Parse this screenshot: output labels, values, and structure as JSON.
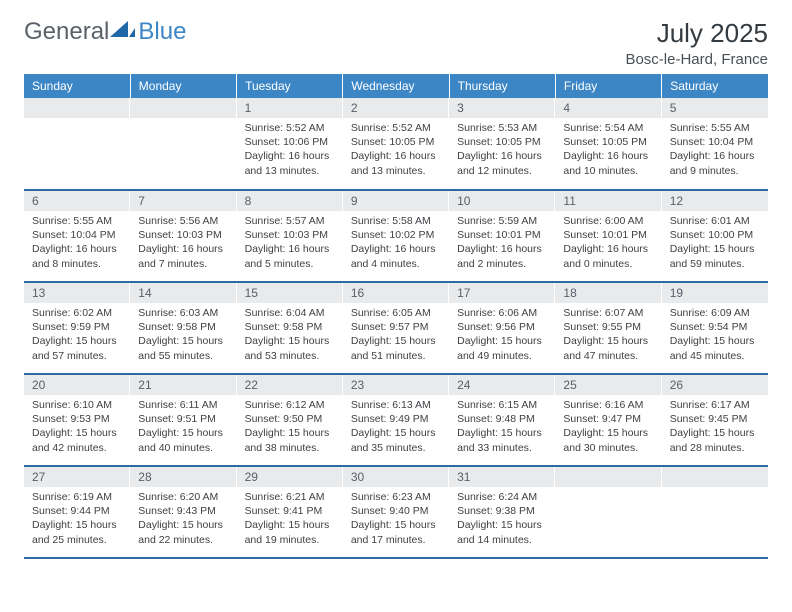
{
  "brand": {
    "part1": "General",
    "part2": "Blue"
  },
  "title": "July 2025",
  "location": "Bosc-le-Hard, France",
  "colors": {
    "header_bg": "#3d86c6",
    "header_text": "#ffffff",
    "daynum_bg": "#e9eaec",
    "row_divider": "#2f6aa3",
    "body_text": "#3f4145",
    "brand_gray": "#5a6168",
    "brand_blue": "#3d86c6"
  },
  "weekdays": [
    "Sunday",
    "Monday",
    "Tuesday",
    "Wednesday",
    "Thursday",
    "Friday",
    "Saturday"
  ],
  "layout": {
    "first_weekday_index": 2,
    "days_in_month": 31
  },
  "days": {
    "1": {
      "sunrise": "5:52 AM",
      "sunset": "10:06 PM",
      "daylight": "16 hours and 13 minutes."
    },
    "2": {
      "sunrise": "5:52 AM",
      "sunset": "10:05 PM",
      "daylight": "16 hours and 13 minutes."
    },
    "3": {
      "sunrise": "5:53 AM",
      "sunset": "10:05 PM",
      "daylight": "16 hours and 12 minutes."
    },
    "4": {
      "sunrise": "5:54 AM",
      "sunset": "10:05 PM",
      "daylight": "16 hours and 10 minutes."
    },
    "5": {
      "sunrise": "5:55 AM",
      "sunset": "10:04 PM",
      "daylight": "16 hours and 9 minutes."
    },
    "6": {
      "sunrise": "5:55 AM",
      "sunset": "10:04 PM",
      "daylight": "16 hours and 8 minutes."
    },
    "7": {
      "sunrise": "5:56 AM",
      "sunset": "10:03 PM",
      "daylight": "16 hours and 7 minutes."
    },
    "8": {
      "sunrise": "5:57 AM",
      "sunset": "10:03 PM",
      "daylight": "16 hours and 5 minutes."
    },
    "9": {
      "sunrise": "5:58 AM",
      "sunset": "10:02 PM",
      "daylight": "16 hours and 4 minutes."
    },
    "10": {
      "sunrise": "5:59 AM",
      "sunset": "10:01 PM",
      "daylight": "16 hours and 2 minutes."
    },
    "11": {
      "sunrise": "6:00 AM",
      "sunset": "10:01 PM",
      "daylight": "16 hours and 0 minutes."
    },
    "12": {
      "sunrise": "6:01 AM",
      "sunset": "10:00 PM",
      "daylight": "15 hours and 59 minutes."
    },
    "13": {
      "sunrise": "6:02 AM",
      "sunset": "9:59 PM",
      "daylight": "15 hours and 57 minutes."
    },
    "14": {
      "sunrise": "6:03 AM",
      "sunset": "9:58 PM",
      "daylight": "15 hours and 55 minutes."
    },
    "15": {
      "sunrise": "6:04 AM",
      "sunset": "9:58 PM",
      "daylight": "15 hours and 53 minutes."
    },
    "16": {
      "sunrise": "6:05 AM",
      "sunset": "9:57 PM",
      "daylight": "15 hours and 51 minutes."
    },
    "17": {
      "sunrise": "6:06 AM",
      "sunset": "9:56 PM",
      "daylight": "15 hours and 49 minutes."
    },
    "18": {
      "sunrise": "6:07 AM",
      "sunset": "9:55 PM",
      "daylight": "15 hours and 47 minutes."
    },
    "19": {
      "sunrise": "6:09 AM",
      "sunset": "9:54 PM",
      "daylight": "15 hours and 45 minutes."
    },
    "20": {
      "sunrise": "6:10 AM",
      "sunset": "9:53 PM",
      "daylight": "15 hours and 42 minutes."
    },
    "21": {
      "sunrise": "6:11 AM",
      "sunset": "9:51 PM",
      "daylight": "15 hours and 40 minutes."
    },
    "22": {
      "sunrise": "6:12 AM",
      "sunset": "9:50 PM",
      "daylight": "15 hours and 38 minutes."
    },
    "23": {
      "sunrise": "6:13 AM",
      "sunset": "9:49 PM",
      "daylight": "15 hours and 35 minutes."
    },
    "24": {
      "sunrise": "6:15 AM",
      "sunset": "9:48 PM",
      "daylight": "15 hours and 33 minutes."
    },
    "25": {
      "sunrise": "6:16 AM",
      "sunset": "9:47 PM",
      "daylight": "15 hours and 30 minutes."
    },
    "26": {
      "sunrise": "6:17 AM",
      "sunset": "9:45 PM",
      "daylight": "15 hours and 28 minutes."
    },
    "27": {
      "sunrise": "6:19 AM",
      "sunset": "9:44 PM",
      "daylight": "15 hours and 25 minutes."
    },
    "28": {
      "sunrise": "6:20 AM",
      "sunset": "9:43 PM",
      "daylight": "15 hours and 22 minutes."
    },
    "29": {
      "sunrise": "6:21 AM",
      "sunset": "9:41 PM",
      "daylight": "15 hours and 19 minutes."
    },
    "30": {
      "sunrise": "6:23 AM",
      "sunset": "9:40 PM",
      "daylight": "15 hours and 17 minutes."
    },
    "31": {
      "sunrise": "6:24 AM",
      "sunset": "9:38 PM",
      "daylight": "15 hours and 14 minutes."
    }
  },
  "labels": {
    "sunrise": "Sunrise: ",
    "sunset": "Sunset: ",
    "daylight": "Daylight: "
  }
}
